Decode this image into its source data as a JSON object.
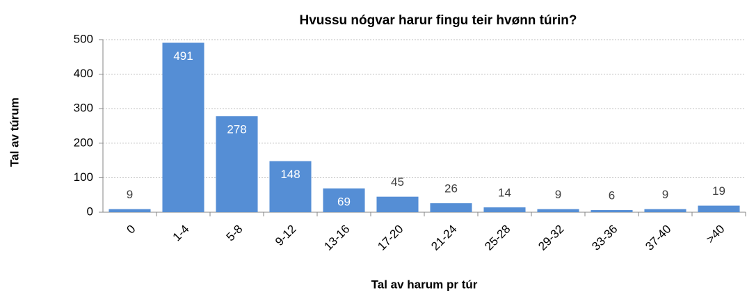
{
  "chart_data": {
    "type": "bar",
    "title": "Hvussu nógvar harur fingu teir hvønn túrin?",
    "x_label": "Tal av harum pr túr",
    "y_label": "Tal av túrum",
    "categories": [
      "0",
      "1-4",
      "5-8",
      "9-12",
      "13-16",
      "17-20",
      "21-24",
      "25-28",
      "29-32",
      "33-36",
      "37-40",
      ">40"
    ],
    "values": [
      9,
      491,
      278,
      148,
      69,
      45,
      26,
      14,
      9,
      6,
      9,
      19
    ],
    "color": "#558ed5",
    "ylim": [
      0,
      500
    ],
    "yticks": [
      0,
      100,
      200,
      300,
      400,
      500
    ],
    "grid": true
  }
}
